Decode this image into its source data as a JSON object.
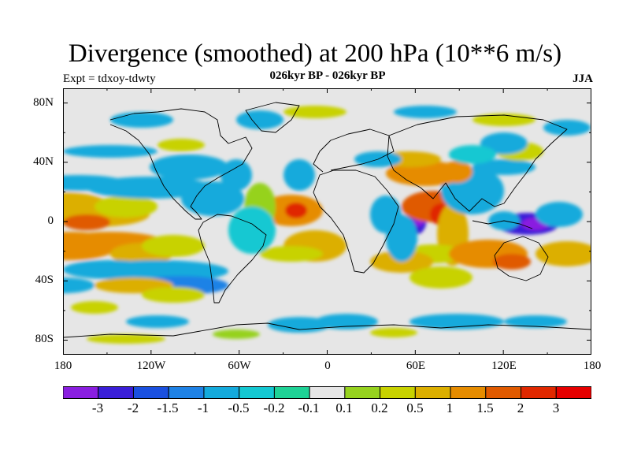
{
  "title": "Divergence (smoothed) at 200 hPa (10**6 m/s)",
  "left_string": "Expt = tdxoy-tdwty",
  "center_string": "026kyr BP - 026kyr BP",
  "right_string": "JJA",
  "colors": {
    "background_land_ocean_neutral": "#e6e6e6",
    "coastline": "#000000"
  },
  "lat_ticks": [
    "80N",
    "40N",
    "0",
    "40S",
    "80S"
  ],
  "lon_ticks": [
    "180",
    "120W",
    "60W",
    "0",
    "60E",
    "120E",
    "180"
  ],
  "colorbar": {
    "colors": [
      "#8a1ee0",
      "#3a1ed8",
      "#1a50e0",
      "#1e82e6",
      "#14aadc",
      "#14c8d2",
      "#1ed296",
      "#e6e6e6",
      "#96d21e",
      "#c8d200",
      "#dcaf00",
      "#e68c00",
      "#e05a00",
      "#e02800",
      "#e60000"
    ],
    "labels": [
      "-3",
      "-2",
      "-1.5",
      "-1",
      "-0.5",
      "-0.2",
      "-0.1",
      "0.1",
      "0.2",
      "0.5",
      "1",
      "1.5",
      "2",
      "3"
    ]
  }
}
